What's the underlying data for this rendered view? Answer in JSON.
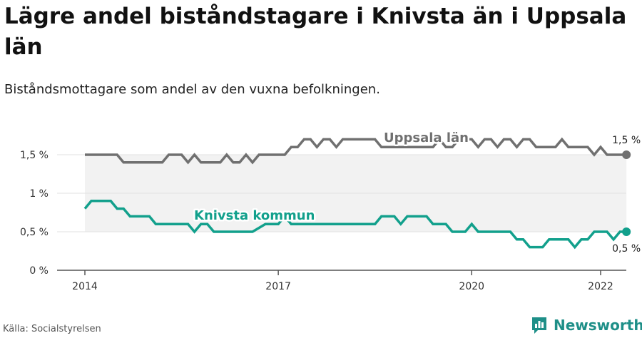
{
  "header": {
    "title": "Lägre andel biståndstagare i Knivsta än i Uppsala län",
    "subtitle": "Biståndsmottagare som andel av den vuxna befolkningen."
  },
  "footer": {
    "source": "Källa: Socialstyrelsen",
    "brand": "Newsworthy"
  },
  "colors": {
    "uppsala": "#707070",
    "knivsta": "#12a08c",
    "band": "#f2f2f2",
    "grid": "#e2e2e2",
    "axis": "#555555"
  },
  "chart_data": {
    "type": "line",
    "title": "Lägre andel biståndstagare i Knivsta än i Uppsala län",
    "subtitle": "Biståndsmottagare som andel av den vuxna befolkningen.",
    "xlabel": "",
    "ylabel": "",
    "xlim": [
      2014,
      2022.5
    ],
    "ylim": [
      0,
      2
    ],
    "xticks": [
      2014,
      2017,
      2020,
      2022
    ],
    "yticks": [
      {
        "value": 0,
        "label": "0 %"
      },
      {
        "value": 0.5,
        "label": "0,5 %"
      },
      {
        "value": 1,
        "label": "1 %"
      },
      {
        "value": 1.5,
        "label": "1,5 %"
      }
    ],
    "grid": true,
    "legend": "none (series labelled directly on lines)",
    "series": [
      {
        "name": "Uppsala län",
        "color": "#707070",
        "end_label": "1,5 %",
        "points": [
          [
            2014.0,
            1.5
          ],
          [
            2014.5,
            1.5
          ],
          [
            2014.6,
            1.4
          ],
          [
            2015.2,
            1.4
          ],
          [
            2015.3,
            1.5
          ],
          [
            2015.5,
            1.5
          ],
          [
            2015.6,
            1.4
          ],
          [
            2015.7,
            1.5
          ],
          [
            2015.8,
            1.4
          ],
          [
            2016.1,
            1.4
          ],
          [
            2016.2,
            1.5
          ],
          [
            2016.3,
            1.4
          ],
          [
            2016.4,
            1.4
          ],
          [
            2016.5,
            1.5
          ],
          [
            2016.6,
            1.4
          ],
          [
            2016.7,
            1.5
          ],
          [
            2017.0,
            1.5
          ],
          [
            2017.1,
            1.5
          ],
          [
            2017.2,
            1.6
          ],
          [
            2017.3,
            1.6
          ],
          [
            2017.4,
            1.7
          ],
          [
            2017.5,
            1.7
          ],
          [
            2017.6,
            1.6
          ],
          [
            2017.7,
            1.7
          ],
          [
            2017.8,
            1.7
          ],
          [
            2017.9,
            1.6
          ],
          [
            2018.0,
            1.7
          ],
          [
            2018.5,
            1.7
          ],
          [
            2018.6,
            1.6
          ],
          [
            2019.4,
            1.6
          ],
          [
            2019.5,
            1.7
          ],
          [
            2019.6,
            1.6
          ],
          [
            2019.7,
            1.6
          ],
          [
            2019.8,
            1.7
          ],
          [
            2020.0,
            1.7
          ],
          [
            2020.1,
            1.6
          ],
          [
            2020.2,
            1.7
          ],
          [
            2020.3,
            1.7
          ],
          [
            2020.4,
            1.6
          ],
          [
            2020.5,
            1.7
          ],
          [
            2020.6,
            1.7
          ],
          [
            2020.7,
            1.6
          ],
          [
            2020.8,
            1.7
          ],
          [
            2020.9,
            1.7
          ],
          [
            2021.0,
            1.6
          ],
          [
            2021.3,
            1.6
          ],
          [
            2021.4,
            1.7
          ],
          [
            2021.5,
            1.6
          ],
          [
            2021.8,
            1.6
          ],
          [
            2021.9,
            1.5
          ],
          [
            2022.0,
            1.6
          ],
          [
            2022.1,
            1.5
          ],
          [
            2022.4,
            1.5
          ]
        ]
      },
      {
        "name": "Knivsta kommun",
        "color": "#12a08c",
        "end_label": "0,5 %",
        "points": [
          [
            2014.0,
            0.8
          ],
          [
            2014.1,
            0.9
          ],
          [
            2014.4,
            0.9
          ],
          [
            2014.5,
            0.8
          ],
          [
            2014.6,
            0.8
          ],
          [
            2014.7,
            0.7
          ],
          [
            2015.0,
            0.7
          ],
          [
            2015.1,
            0.6
          ],
          [
            2015.6,
            0.6
          ],
          [
            2015.7,
            0.5
          ],
          [
            2015.8,
            0.6
          ],
          [
            2015.9,
            0.6
          ],
          [
            2016.0,
            0.5
          ],
          [
            2016.6,
            0.5
          ],
          [
            2016.8,
            0.6
          ],
          [
            2017.0,
            0.6
          ],
          [
            2017.1,
            0.7
          ],
          [
            2017.2,
            0.6
          ],
          [
            2018.5,
            0.6
          ],
          [
            2018.6,
            0.7
          ],
          [
            2018.8,
            0.7
          ],
          [
            2018.9,
            0.6
          ],
          [
            2019.0,
            0.7
          ],
          [
            2019.3,
            0.7
          ],
          [
            2019.4,
            0.6
          ],
          [
            2019.6,
            0.6
          ],
          [
            2019.7,
            0.5
          ],
          [
            2019.9,
            0.5
          ],
          [
            2020.0,
            0.6
          ],
          [
            2020.1,
            0.5
          ],
          [
            2020.6,
            0.5
          ],
          [
            2020.7,
            0.4
          ],
          [
            2020.8,
            0.4
          ],
          [
            2020.9,
            0.3
          ],
          [
            2021.1,
            0.3
          ],
          [
            2021.2,
            0.4
          ],
          [
            2021.5,
            0.4
          ],
          [
            2021.6,
            0.3
          ],
          [
            2021.7,
            0.4
          ],
          [
            2021.8,
            0.4
          ],
          [
            2021.9,
            0.5
          ],
          [
            2022.1,
            0.5
          ],
          [
            2022.2,
            0.4
          ],
          [
            2022.3,
            0.5
          ],
          [
            2022.4,
            0.5
          ]
        ]
      }
    ]
  }
}
